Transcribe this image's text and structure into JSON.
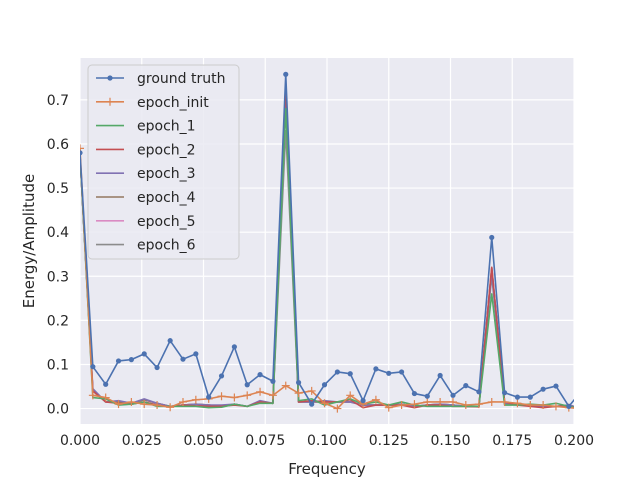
{
  "chart_data": {
    "type": "line",
    "xlabel": "Frequency",
    "ylabel": "Energy/Amplitude",
    "xlim": [
      0.0,
      0.2
    ],
    "ylim": [
      -0.035,
      0.795
    ],
    "grid": true,
    "legend_position": "top-left",
    "xticks": [
      0.0,
      0.025,
      0.05,
      0.075,
      0.1,
      0.125,
      0.15,
      0.175,
      0.2
    ],
    "xtick_labels": [
      "0.000",
      "0.025",
      "0.050",
      "0.075",
      "0.100",
      "0.125",
      "0.150",
      "0.175",
      "0.200"
    ],
    "yticks": [
      0.0,
      0.1,
      0.2,
      0.3,
      0.4,
      0.5,
      0.6,
      0.7
    ],
    "ytick_labels": [
      "0.0",
      "0.1",
      "0.2",
      "0.3",
      "0.4",
      "0.5",
      "0.6",
      "0.7"
    ],
    "x": [
      0.0,
      0.0052,
      0.0104,
      0.0156,
      0.0208,
      0.026,
      0.0312,
      0.0365,
      0.0417,
      0.0469,
      0.0521,
      0.0573,
      0.0625,
      0.0677,
      0.0729,
      0.0781,
      0.0833,
      0.0885,
      0.0938,
      0.099,
      0.1042,
      0.1094,
      0.1146,
      0.1198,
      0.125,
      0.1302,
      0.1354,
      0.1406,
      0.1458,
      0.151,
      0.1562,
      0.1615,
      0.1667,
      0.1719,
      0.1771,
      0.1823,
      0.1875,
      0.1927,
      0.1979,
      0.2031
    ],
    "series": [
      {
        "name": "ground truth",
        "color": "#4c72b0",
        "marker": "dot",
        "values": [
          0.58,
          0.095,
          0.055,
          0.108,
          0.111,
          0.124,
          0.093,
          0.154,
          0.112,
          0.124,
          0.026,
          0.074,
          0.14,
          0.054,
          0.077,
          0.062,
          0.758,
          0.059,
          0.01,
          0.054,
          0.083,
          0.079,
          0.018,
          0.09,
          0.08,
          0.083,
          0.034,
          0.028,
          0.075,
          0.03,
          0.052,
          0.038,
          0.388,
          0.036,
          0.026,
          0.026,
          0.044,
          0.051,
          0.005,
          0.04
        ]
      },
      {
        "name": "epoch_init",
        "color": "#dd8452",
        "marker": "plus",
        "values": [
          0.59,
          0.03,
          0.025,
          0.01,
          0.015,
          0.01,
          0.008,
          0.003,
          0.015,
          0.02,
          0.022,
          0.028,
          0.025,
          0.03,
          0.038,
          0.03,
          0.052,
          0.035,
          0.04,
          0.012,
          0.0,
          0.03,
          0.01,
          0.02,
          0.002,
          0.008,
          0.01,
          0.015,
          0.015,
          0.015,
          0.008,
          0.01,
          0.015,
          0.015,
          0.012,
          0.008,
          0.008,
          0.005,
          0.002,
          0.0
        ]
      },
      {
        "name": "epoch_1",
        "color": "#55a868",
        "marker": "none",
        "values": [
          0.575,
          0.025,
          0.022,
          0.008,
          0.01,
          0.015,
          0.005,
          0.005,
          0.005,
          0.005,
          0.002,
          0.003,
          0.01,
          0.005,
          0.012,
          0.012,
          0.68,
          0.018,
          0.022,
          0.008,
          0.015,
          0.022,
          0.01,
          0.015,
          0.008,
          0.015,
          0.008,
          0.005,
          0.005,
          0.005,
          0.005,
          0.005,
          0.26,
          0.008,
          0.008,
          0.01,
          0.008,
          0.012,
          0.005,
          0.0
        ]
      },
      {
        "name": "epoch_2",
        "color": "#c44e52",
        "marker": "none",
        "values": [
          0.575,
          0.04,
          0.015,
          0.012,
          0.01,
          0.015,
          0.008,
          0.004,
          0.008,
          0.006,
          0.005,
          0.005,
          0.008,
          0.005,
          0.015,
          0.012,
          0.735,
          0.015,
          0.018,
          0.015,
          0.015,
          0.02,
          0.002,
          0.008,
          0.008,
          0.008,
          0.002,
          0.008,
          0.008,
          0.005,
          0.005,
          0.004,
          0.32,
          0.015,
          0.008,
          0.005,
          0.002,
          0.005,
          0.005,
          0.0
        ]
      },
      {
        "name": "epoch_3",
        "color": "#8172b3",
        "marker": "none",
        "values": [
          0.575,
          0.045,
          0.015,
          0.018,
          0.012,
          0.022,
          0.012,
          0.005,
          0.008,
          0.01,
          0.008,
          0.008,
          0.01,
          0.005,
          0.018,
          0.012,
          0.72,
          0.015,
          0.015,
          0.018,
          0.015,
          0.015,
          0.008,
          0.008,
          0.008,
          0.01,
          0.005,
          0.008,
          0.01,
          0.008,
          0.005,
          0.005,
          0.31,
          0.012,
          0.01,
          0.008,
          0.005,
          0.005,
          0.008,
          0.0
        ]
      },
      {
        "name": "epoch_4",
        "color": "#937860",
        "marker": "none",
        "values": [
          0.575,
          0.04,
          0.015,
          0.015,
          0.012,
          0.02,
          0.012,
          0.005,
          0.008,
          0.01,
          0.008,
          0.005,
          0.01,
          0.005,
          0.015,
          0.012,
          0.7,
          0.015,
          0.015,
          0.015,
          0.015,
          0.015,
          0.008,
          0.008,
          0.008,
          0.01,
          0.005,
          0.008,
          0.01,
          0.008,
          0.005,
          0.005,
          0.32,
          0.012,
          0.01,
          0.008,
          0.005,
          0.005,
          0.008,
          0.0
        ]
      },
      {
        "name": "epoch_5",
        "color": "#da8bc3",
        "marker": "none",
        "values": [
          0.575,
          0.04,
          0.015,
          0.015,
          0.012,
          0.02,
          0.012,
          0.005,
          0.008,
          0.01,
          0.008,
          0.005,
          0.01,
          0.005,
          0.015,
          0.012,
          0.7,
          0.015,
          0.015,
          0.015,
          0.015,
          0.015,
          0.008,
          0.008,
          0.008,
          0.01,
          0.005,
          0.008,
          0.01,
          0.008,
          0.005,
          0.005,
          0.32,
          0.012,
          0.01,
          0.008,
          0.005,
          0.005,
          0.008,
          0.0
        ]
      },
      {
        "name": "epoch_6",
        "color": "#8c8c8c",
        "marker": "none",
        "values": [
          0.575,
          0.04,
          0.015,
          0.015,
          0.012,
          0.02,
          0.012,
          0.005,
          0.008,
          0.01,
          0.008,
          0.005,
          0.01,
          0.005,
          0.015,
          0.012,
          0.63,
          0.015,
          0.015,
          0.015,
          0.015,
          0.015,
          0.008,
          0.008,
          0.008,
          0.01,
          0.005,
          0.008,
          0.01,
          0.008,
          0.005,
          0.005,
          0.3,
          0.012,
          0.01,
          0.008,
          0.005,
          0.005,
          0.008,
          0.0
        ]
      }
    ]
  }
}
